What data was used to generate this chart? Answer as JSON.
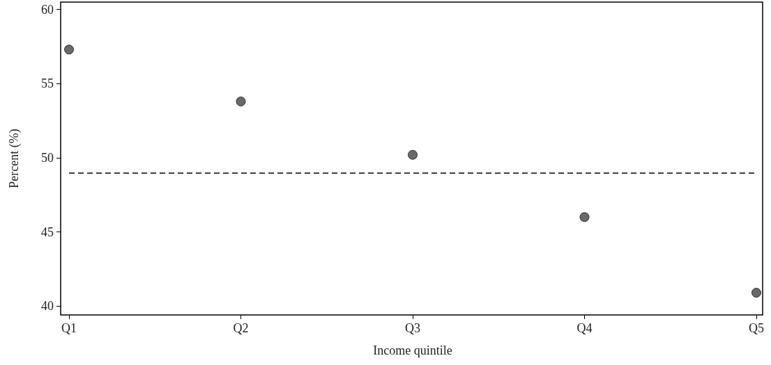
{
  "chart_data": {
    "type": "scatter",
    "xlabel": "Income quintile",
    "ylabel": "Percent (%)",
    "categories": [
      "Q1",
      "Q2",
      "Q3",
      "Q4",
      "Q5"
    ],
    "series": [
      {
        "color": "#444444",
        "values": [
          57.3,
          53.8,
          50.2,
          46.0,
          40.9
        ]
      }
    ],
    "ylim": [
      39.4,
      60.5
    ],
    "yticks": [
      40,
      45,
      50,
      55,
      60
    ],
    "grid": false,
    "marker": "circle",
    "ref_lines": [
      {
        "axis": "y",
        "value": 49.0,
        "line_style": "dashed",
        "color": "#000000"
      }
    ]
  }
}
